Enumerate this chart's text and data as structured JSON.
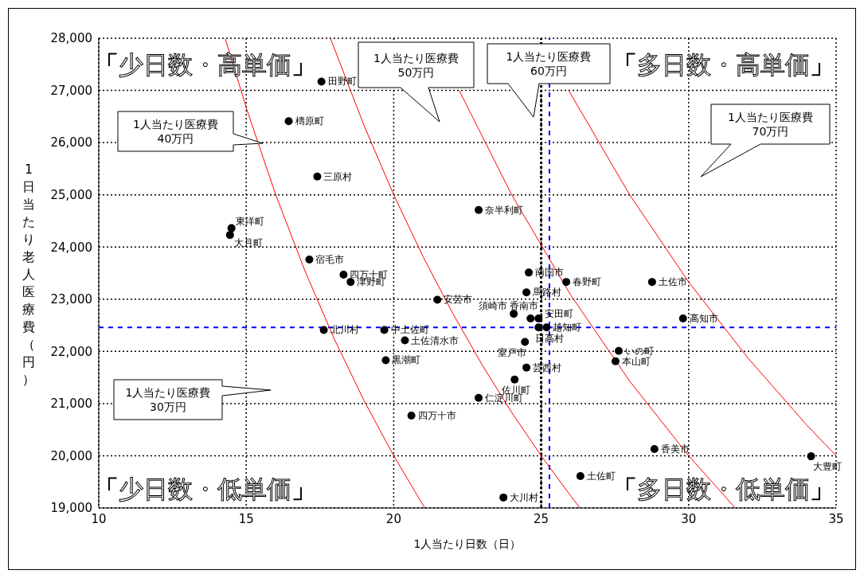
{
  "chart_data": {
    "type": "scatter",
    "xlabel": "1人当たり日数（日）",
    "ylabel": "1日当たり老人医療費（円）",
    "xlim": [
      10,
      35
    ],
    "xticks": [
      10,
      15,
      20,
      25,
      30,
      35
    ],
    "ylim": [
      19000,
      28000
    ],
    "yticks": [
      {
        "value": 19000,
        "label": "19,000"
      },
      {
        "value": 20000,
        "label": "20,000"
      },
      {
        "value": 21000,
        "label": "21,000"
      },
      {
        "value": 22000,
        "label": "22,000"
      },
      {
        "value": 23000,
        "label": "23,000"
      },
      {
        "value": 24000,
        "label": "24,000"
      },
      {
        "value": 25000,
        "label": "25,000"
      },
      {
        "value": 26000,
        "label": "26,000"
      },
      {
        "value": 27000,
        "label": "27,000"
      },
      {
        "value": 28000,
        "label": "28,000"
      }
    ],
    "grid": true,
    "series": [
      {
        "type": "scatter",
        "color": "#000000",
        "marker": "circle",
        "x": [
          17.55,
          16.44,
          17.41,
          14.5,
          14.45,
          17.14,
          18.3,
          18.54,
          22.88,
          24.58,
          25.85,
          28.76,
          24.5,
          21.48,
          24.07,
          24.64,
          24.91,
          24.91,
          25.18,
          24.45,
          24.5,
          24.1,
          22.88,
          27.63,
          27.52,
          29.81,
          28.84,
          34.15,
          26.33,
          23.72,
          17.63,
          19.68,
          20.38,
          19.73,
          20.6
        ],
        "values": [
          27170,
          26410,
          25350,
          24360,
          24230,
          23760,
          23470,
          23330,
          24710,
          23510,
          23330,
          23330,
          23130,
          22990,
          22720,
          22630,
          22630,
          22460,
          22460,
          22180,
          21690,
          21460,
          21110,
          22010,
          21810,
          22630,
          20130,
          19990,
          19610,
          19200,
          22410,
          22410,
          22210,
          21830,
          20770
        ]
      },
      {
        "type": "line",
        "color": "#ff0000",
        "marker": "none",
        "x": [
          14.29,
          15,
          16,
          17,
          18,
          19,
          20,
          21,
          21.05
        ],
        "values": [
          27990,
          26670,
          25000,
          23530,
          22220,
          21050,
          20000,
          19050,
          19000
        ]
      },
      {
        "type": "line",
        "color": "#ff0000",
        "marker": "none",
        "x": [
          17.86,
          19,
          20,
          21,
          22,
          23,
          24,
          25,
          26,
          26.3
        ],
        "values": [
          27990,
          26320,
          25000,
          23810,
          22730,
          21740,
          20830,
          20000,
          19230,
          19010
        ]
      },
      {
        "type": "line",
        "color": "#ff0000",
        "marker": "none",
        "x": [
          22.22,
          24,
          26,
          28,
          30,
          31.5,
          31.57
        ],
        "values": [
          27000,
          25000,
          23080,
          21430,
          20000,
          19050,
          19010
        ]
      },
      {
        "type": "line",
        "color": "#ff0000",
        "marker": "none",
        "x": [
          25.93,
          28,
          30,
          32,
          34,
          35
        ],
        "values": [
          27000,
          25000,
          23330,
          21880,
          20590,
          20000
        ]
      }
    ],
    "ref_lines": [
      {
        "axis": "y",
        "value": 22460,
        "color": "#0000ff",
        "line_style": "dashed"
      },
      {
        "axis": "x",
        "value": 25.28,
        "color": "#0000ff",
        "line_style": "dashed"
      },
      {
        "axis": "x",
        "value": 25,
        "color": "#000000",
        "line_style": "dotted"
      }
    ],
    "annotations": [
      "「少日数・高単価」",
      "「多日数・高単価」",
      "「少日数・低単価」",
      "「多日数・低単価」",
      "1人当たり医療費 40万円",
      "1人当たり医療費 50万円",
      "1人当たり医療費 60万円",
      "1人当たり医療費 70万円",
      "1人当たり医療費 30万円",
      {
        "text": "田野町",
        "x": 17.55,
        "y": 27170
      },
      {
        "text": "檮原町",
        "x": 16.44,
        "y": 26410
      },
      {
        "text": "三原村",
        "x": 17.41,
        "y": 25350
      },
      {
        "text": "東洋町",
        "x": 14.5,
        "y": 24360
      },
      {
        "text": "大月町",
        "x": 14.45,
        "y": 24230
      },
      {
        "text": "宿毛市",
        "x": 17.14,
        "y": 23760
      },
      {
        "text": "四万十町",
        "x": 18.3,
        "y": 23470
      },
      {
        "text": "津野町",
        "x": 18.54,
        "y": 23330
      },
      {
        "text": "奈半利町",
        "x": 22.88,
        "y": 24710
      },
      {
        "text": "南国市",
        "x": 24.58,
        "y": 23510
      },
      {
        "text": "春野町",
        "x": 25.85,
        "y": 23330
      },
      {
        "text": "土佐市",
        "x": 28.76,
        "y": 23330
      },
      {
        "text": "馬路村",
        "x": 24.5,
        "y": 23130
      },
      {
        "text": "安芸市",
        "x": 21.48,
        "y": 22990
      },
      {
        "text": "須崎市",
        "x": 24.07,
        "y": 22720
      },
      {
        "text": "香南市",
        "x": 24.64,
        "y": 22630
      },
      {
        "text": "安田町",
        "x": 24.91,
        "y": 22630
      },
      {
        "text": "日高村",
        "x": 24.91,
        "y": 22460
      },
      {
        "text": "越知町",
        "x": 25.18,
        "y": 22460
      },
      {
        "text": "室戸市",
        "x": 24.45,
        "y": 22180
      },
      {
        "text": "芸西村",
        "x": 24.5,
        "y": 21690
      },
      {
        "text": "佐川町",
        "x": 24.1,
        "y": 21460
      },
      {
        "text": "仁淀川町",
        "x": 22.88,
        "y": 21110
      },
      {
        "text": "いの町",
        "x": 27.63,
        "y": 22010
      },
      {
        "text": "本山町",
        "x": 27.52,
        "y": 21810
      },
      {
        "text": "高知市",
        "x": 29.81,
        "y": 22630
      },
      {
        "text": "香美市",
        "x": 28.84,
        "y": 20130
      },
      {
        "text": "大豊町",
        "x": 34.15,
        "y": 19990
      },
      {
        "text": "土佐町",
        "x": 26.33,
        "y": 19610
      },
      {
        "text": "大川村",
        "x": 23.72,
        "y": 19200
      },
      {
        "text": "北川村",
        "x": 17.63,
        "y": 22410
      },
      {
        "text": "中土佐町",
        "x": 19.68,
        "y": 22410
      },
      {
        "text": "土佐清水市",
        "x": 20.38,
        "y": 22210
      },
      {
        "text": "黒潮町",
        "x": 19.73,
        "y": 21830
      },
      {
        "text": "四万十市",
        "x": 20.6,
        "y": 20770
      }
    ]
  }
}
